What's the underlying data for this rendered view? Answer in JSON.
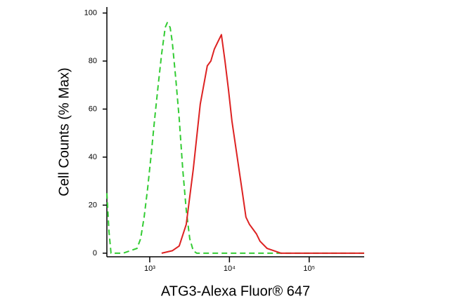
{
  "chart_data": {
    "type": "line",
    "xlabel": "ATG3-Alexa Fluor® 647",
    "ylabel": "Cell Counts (% Max)",
    "xscale": "log",
    "xlim": [
      290,
      490000
    ],
    "ylim": [
      -1.5,
      102.5
    ],
    "xticks": [
      {
        "value": 1000,
        "label": "10³"
      },
      {
        "value": 10000,
        "label": "10⁴"
      },
      {
        "value": 100000,
        "label": "10⁵"
      }
    ],
    "yticks": [
      0,
      20,
      40,
      60,
      80,
      100
    ],
    "series": [
      {
        "color": "#33cc33",
        "dash": true,
        "x": [
          290,
          308,
          327,
          462,
          693,
          768,
          851,
          942,
          1042,
          1153,
          1276,
          1412,
          1563,
          1660,
          1802,
          1915,
          2119,
          2345,
          2595,
          2872,
          3177,
          3516,
          3891,
          490000
        ],
        "values": [
          25,
          9,
          0,
          0,
          2,
          6,
          15,
          27,
          41,
          56,
          70,
          83,
          94,
          96,
          94,
          88,
          73,
          56,
          35,
          18,
          6,
          1,
          0,
          0
        ]
      },
      {
        "color": "#dd2222",
        "dash": false,
        "x": [
          1412,
          1915,
          2345,
          2872,
          3516,
          4305,
          5270,
          5844,
          6471,
          7165,
          7933,
          8783,
          9725,
          10740,
          11890,
          13160,
          14570,
          16110,
          17830,
          19720,
          21830,
          24160,
          29580,
          36220,
          44460,
          490000
        ],
        "values": [
          0,
          1,
          3,
          12,
          35,
          62,
          78,
          80,
          85,
          88,
          91,
          80,
          68,
          55,
          45,
          35,
          25,
          15,
          12,
          10,
          8,
          5,
          2,
          1,
          0,
          0
        ]
      }
    ]
  }
}
